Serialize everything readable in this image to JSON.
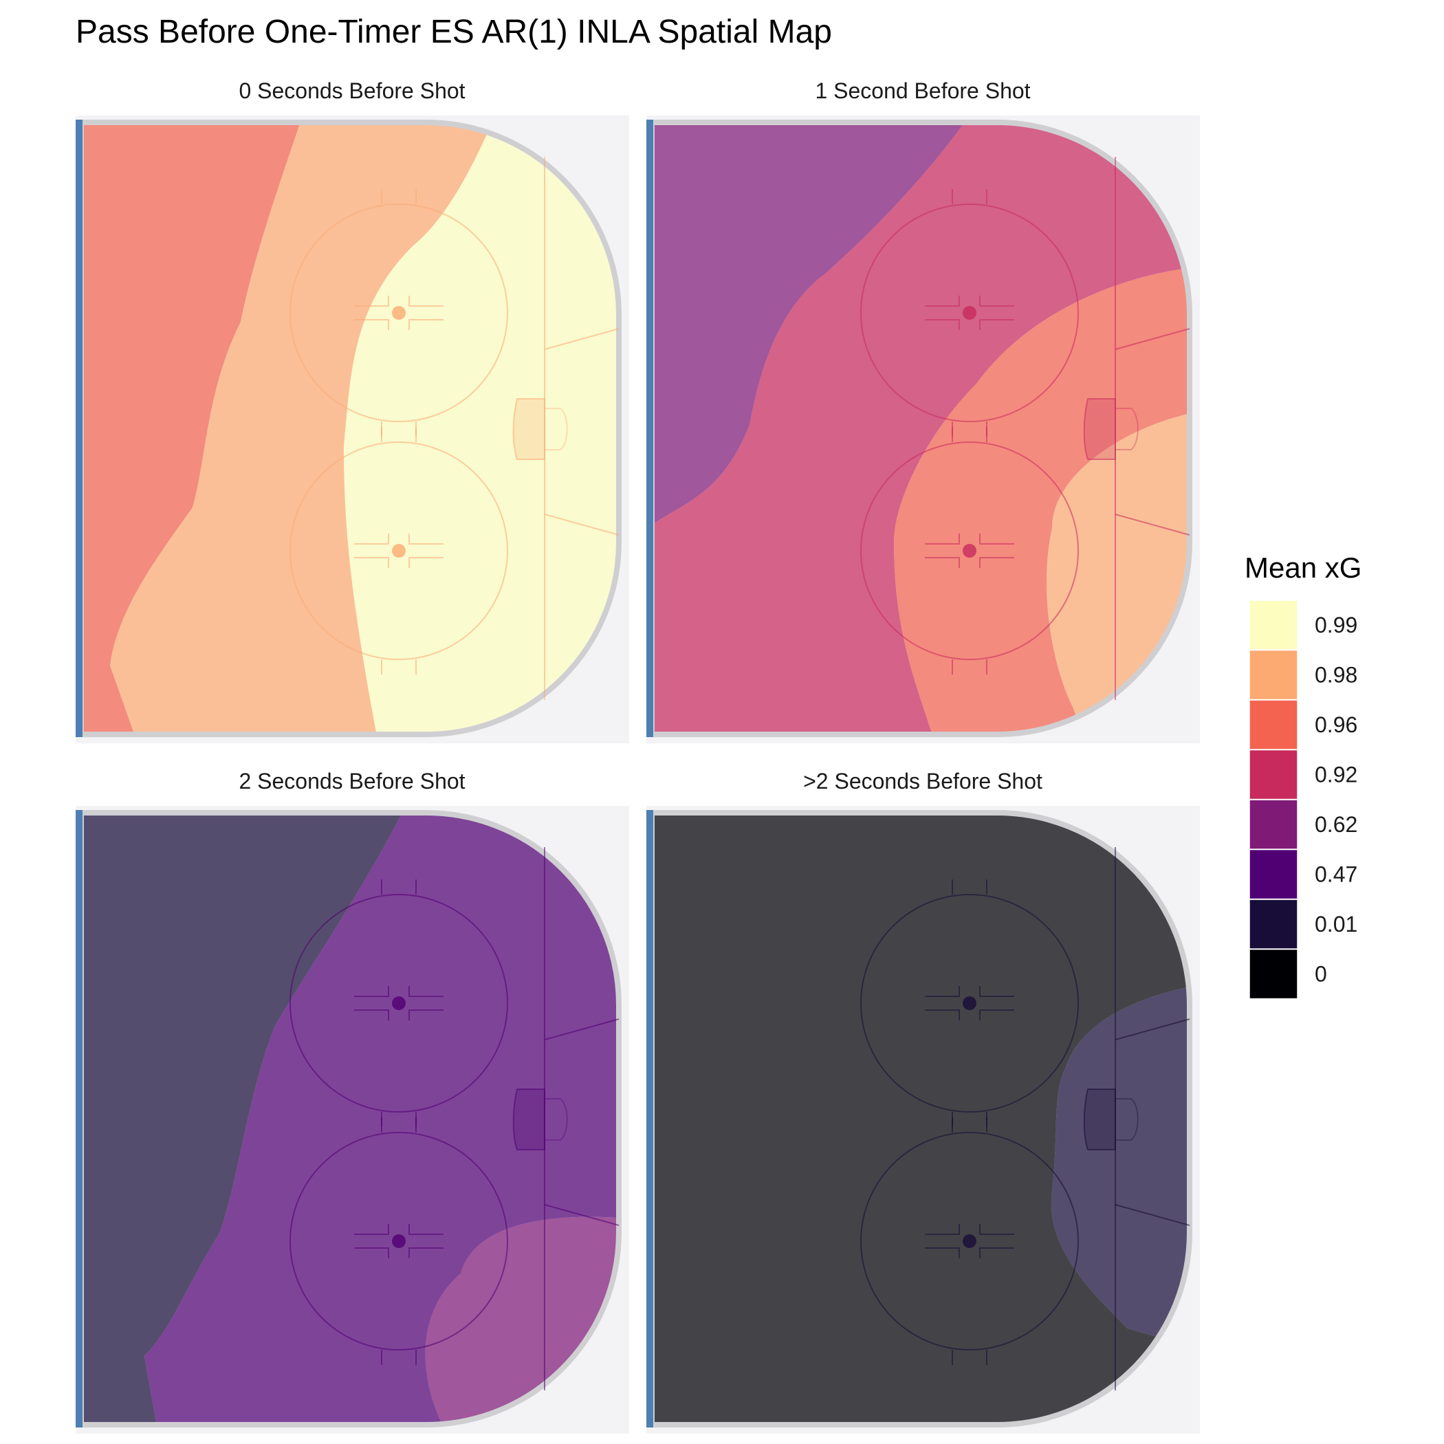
{
  "chart_data": {
    "type": "heatmap",
    "title": "Pass Before One-Timer ES AR(1) INLA Spatial Map",
    "legend": {
      "title": "Mean xG",
      "placement": "right",
      "entries": [
        {
          "label": "0.99",
          "color": "#FCFDBF"
        },
        {
          "label": "0.98",
          "color": "#FCAA72"
        },
        {
          "label": "0.96",
          "color": "#F3634F"
        },
        {
          "label": "0.92",
          "color": "#C82A5E"
        },
        {
          "label": "0.62",
          "color": "#7F1B77"
        },
        {
          "label": "0.47",
          "color": "#510073"
        },
        {
          "label": "0.01",
          "color": "#180D38"
        },
        {
          "label": "0",
          "color": "#000004"
        }
      ]
    },
    "panels": [
      {
        "title": "0 Seconds Before Shot",
        "marker_color": "#FCAA72",
        "regions": [
          {
            "value": "0.96",
            "extent": "left third of zone"
          },
          {
            "value": "0.98",
            "extent": "diagonal middle band"
          },
          {
            "value": "0.99",
            "extent": "right half including net area"
          }
        ]
      },
      {
        "title": "1 Second Before Shot",
        "marker_color": "#C82A5E",
        "regions": [
          {
            "value": "0.62",
            "extent": "upper-left corner"
          },
          {
            "value": "0.92",
            "extent": "broad middle band"
          },
          {
            "value": "0.96",
            "extent": "arc around lower-right"
          },
          {
            "value": "0.98",
            "extent": "bottom-right corner near net"
          }
        ]
      },
      {
        "title": "2 Seconds Before Shot",
        "marker_color": "#510073",
        "regions": [
          {
            "value": "0.01",
            "extent": "left side of zone"
          },
          {
            "value": "0.47",
            "extent": "middle band"
          },
          {
            "value": "0.62",
            "extent": "right side near net"
          }
        ]
      },
      {
        "title": ">2 Seconds Before Shot",
        "marker_color": "#180D38",
        "regions": [
          {
            "value": "0",
            "extent": "most of zone"
          },
          {
            "value": "0.01",
            "extent": "small bulge at right near net"
          }
        ]
      }
    ],
    "grid": false,
    "axes": "none"
  }
}
